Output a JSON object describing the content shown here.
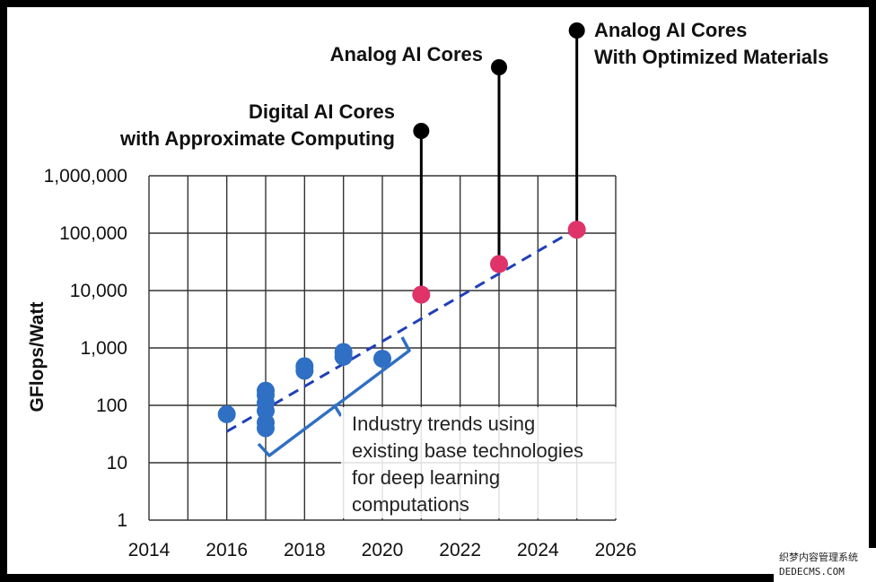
{
  "chart_data": {
    "type": "scatter",
    "xlabel": "",
    "ylabel": "GFlops/Watt",
    "xlim": [
      2014,
      2026
    ],
    "ylim": [
      1,
      1000000
    ],
    "yscale": "log",
    "grid": true,
    "x_ticks": [
      "2014",
      "2016",
      "2018",
      "2020",
      "2022",
      "2024",
      "2026"
    ],
    "y_ticks": [
      "1",
      "10",
      "100",
      "1,000",
      "10,000",
      "100,000",
      "1,000,000"
    ],
    "y_tick_values": [
      1,
      10,
      100,
      1000,
      10000,
      100000,
      1000000
    ],
    "x_tick_values": [
      2014,
      2016,
      2018,
      2020,
      2022,
      2024,
      2026
    ],
    "series": [
      {
        "color": "#2f6fc4",
        "points": [
          {
            "x": 2016,
            "y": 70
          },
          {
            "x": 2017,
            "y": 40
          },
          {
            "x": 2017,
            "y": 50
          },
          {
            "x": 2017,
            "y": 80
          },
          {
            "x": 2017,
            "y": 110
          },
          {
            "x": 2017,
            "y": 150
          },
          {
            "x": 2017,
            "y": 180
          },
          {
            "x": 2018,
            "y": 400
          },
          {
            "x": 2018,
            "y": 480
          },
          {
            "x": 2019,
            "y": 700
          },
          {
            "x": 2019,
            "y": 850
          },
          {
            "x": 2020,
            "y": 650
          }
        ]
      },
      {
        "color": "#e0336a",
        "points": [
          {
            "x": 2021,
            "y": 8500
          },
          {
            "x": 2023,
            "y": 29000
          },
          {
            "x": 2025,
            "y": 115000
          }
        ]
      }
    ],
    "trend_line": {
      "color": "#1f3fb8",
      "from": {
        "x": 2016,
        "y": 35
      },
      "to": {
        "x": 2025,
        "y": 120000
      }
    },
    "annotations": [
      {
        "lines": [
          "Digital AI Cores",
          "with Approximate Computing"
        ],
        "x": 2021,
        "y": 8500
      },
      {
        "lines": [
          "Analog AI Cores"
        ],
        "x": 2023,
        "y": 29000
      },
      {
        "lines": [
          "Analog AI Cores",
          "With Optimized Materials"
        ],
        "x": 2025,
        "y": 115000
      }
    ],
    "bracket_note": [
      "Industry trends using",
      "existing base technologies",
      "for deep learning",
      "computations"
    ]
  },
  "watermark": {
    "line1": "织梦内容管理系统",
    "line2": "DEDECMS.COM"
  }
}
